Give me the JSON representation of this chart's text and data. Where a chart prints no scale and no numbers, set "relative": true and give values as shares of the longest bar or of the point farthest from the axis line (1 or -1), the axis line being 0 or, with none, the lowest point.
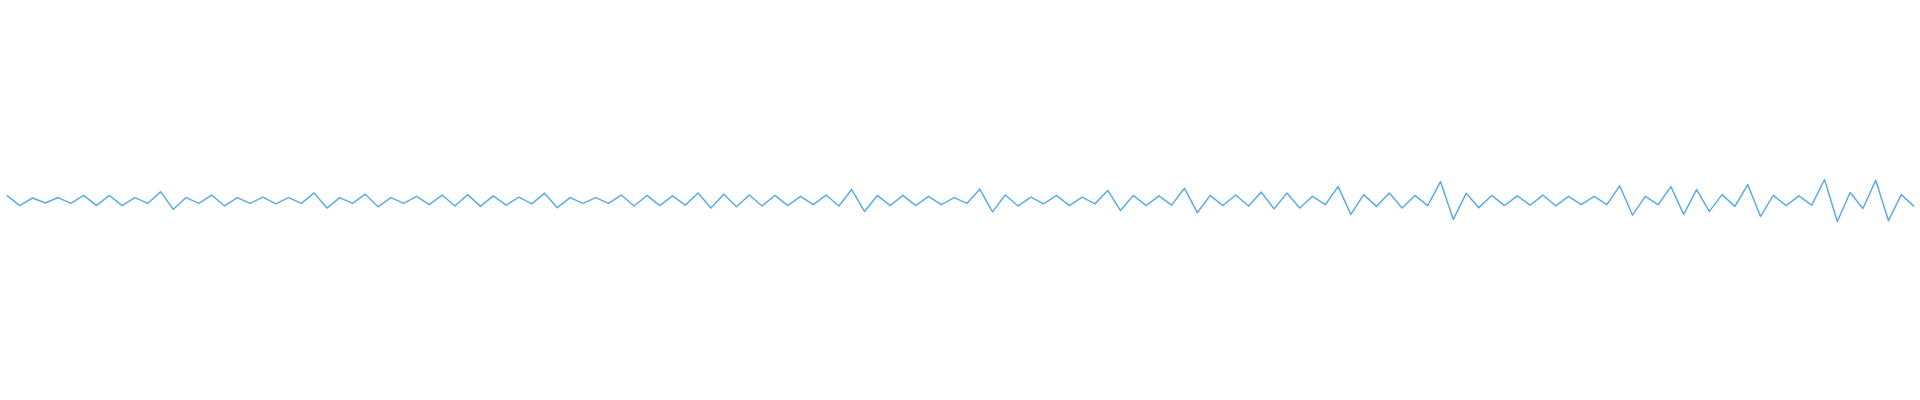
{
  "chart_data": {
    "type": "line",
    "relative": true,
    "categories": [
      null,
      null,
      null,
      null,
      null,
      null,
      null,
      null,
      null,
      null,
      null,
      null,
      null,
      null,
      null,
      null,
      null,
      null,
      null,
      null,
      null,
      null,
      null,
      null,
      null,
      null,
      null,
      null,
      null,
      null,
      null,
      null,
      null,
      null,
      null,
      null,
      null,
      null,
      null,
      null,
      null,
      null,
      null,
      null,
      null,
      null,
      null,
      null,
      null,
      null,
      null,
      null,
      null,
      null,
      null,
      null,
      null,
      null,
      null,
      null,
      null,
      null,
      null,
      null,
      null,
      null,
      null,
      null,
      null,
      null,
      null,
      null,
      null,
      null,
      null,
      null,
      null,
      null,
      null,
      null,
      null,
      null,
      null,
      null,
      null,
      null,
      null,
      null,
      null,
      null,
      null,
      null,
      null,
      null,
      null,
      null,
      null,
      null,
      null,
      null,
      null,
      null,
      null,
      null,
      null,
      null,
      null,
      null,
      null,
      null,
      null,
      null,
      null,
      null,
      null,
      null,
      null,
      null,
      null,
      null,
      null,
      null,
      null,
      null,
      null,
      null,
      null,
      null,
      null,
      null,
      null,
      null,
      null,
      null,
      null,
      null,
      null,
      null,
      null,
      null,
      null,
      null,
      null,
      null,
      null,
      null,
      null,
      null,
      null,
      null
    ],
    "series": [
      {
        "color": "#5dade2",
        "values": [
          0.62,
          0.38,
          0.56,
          0.44,
          0.57,
          0.43,
          0.62,
          0.38,
          0.62,
          0.38,
          0.57,
          0.43,
          0.71,
          0.29,
          0.57,
          0.43,
          0.63,
          0.37,
          0.57,
          0.43,
          0.58,
          0.42,
          0.57,
          0.43,
          0.68,
          0.32,
          0.57,
          0.43,
          0.65,
          0.35,
          0.57,
          0.43,
          0.6,
          0.4,
          0.63,
          0.37,
          0.64,
          0.36,
          0.61,
          0.39,
          0.58,
          0.42,
          0.67,
          0.33,
          0.57,
          0.43,
          0.57,
          0.43,
          0.63,
          0.37,
          0.62,
          0.38,
          0.61,
          0.39,
          0.68,
          0.32,
          0.65,
          0.35,
          0.63,
          0.37,
          0.62,
          0.38,
          0.6,
          0.4,
          0.63,
          0.37,
          0.76,
          0.24,
          0.62,
          0.38,
          0.62,
          0.38,
          0.6,
          0.4,
          0.57,
          0.43,
          0.77,
          0.23,
          0.63,
          0.37,
          0.58,
          0.42,
          0.62,
          0.38,
          0.58,
          0.42,
          0.74,
          0.26,
          0.62,
          0.38,
          0.61,
          0.39,
          0.79,
          0.21,
          0.62,
          0.38,
          0.63,
          0.37,
          0.7,
          0.3,
          0.68,
          0.32,
          0.6,
          0.4,
          0.83,
          0.17,
          0.64,
          0.36,
          0.68,
          0.32,
          0.62,
          0.38,
          0.95,
          0.05,
          0.67,
          0.33,
          0.62,
          0.38,
          0.61,
          0.39,
          0.63,
          0.37,
          0.6,
          0.4,
          0.6,
          0.4,
          0.85,
          0.15,
          0.6,
          0.4,
          0.83,
          0.17,
          0.76,
          0.24,
          0.64,
          0.36,
          0.88,
          0.12,
          0.62,
          0.38,
          0.61,
          0.39,
          1,
          0,
          0.69,
          0.31,
          0.98,
          0.02,
          0.64,
          0.36
        ]
      }
    ]
  }
}
